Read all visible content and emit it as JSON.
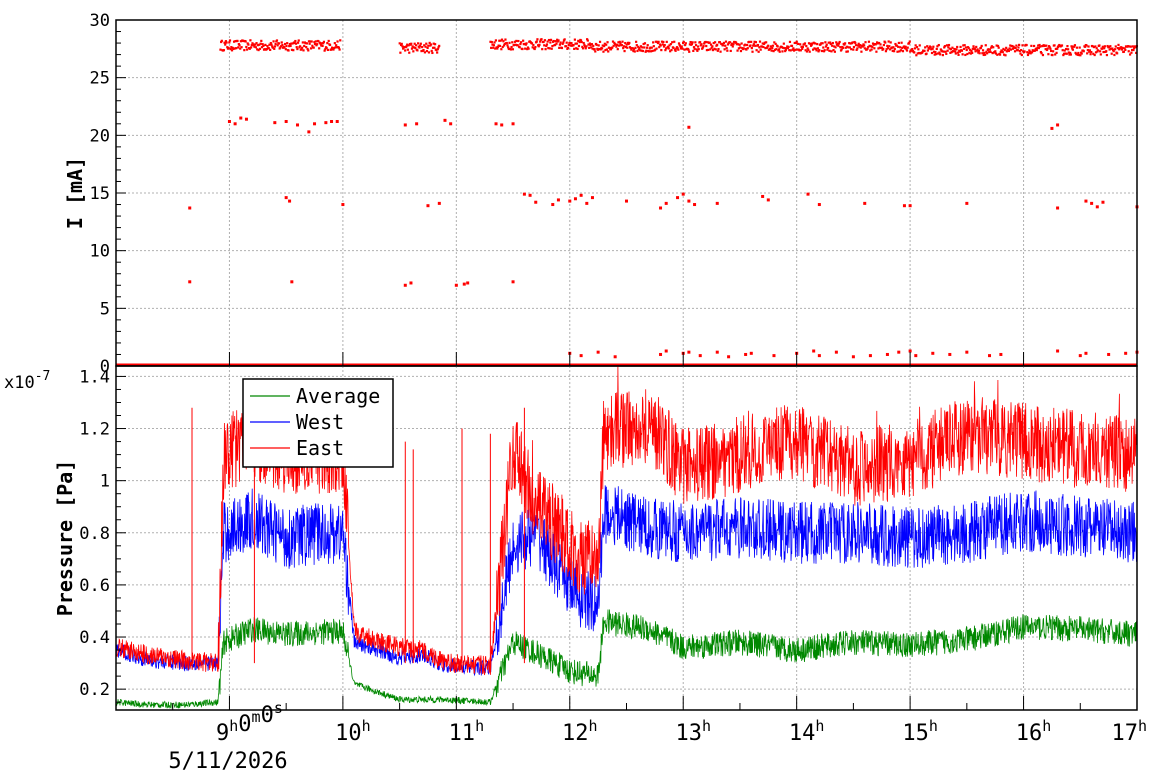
{
  "chart_data": [
    {
      "type": "scatter",
      "ylabel": "I [mA]",
      "ylim": [
        0,
        30
      ],
      "yticks": [
        "0",
        "5",
        "10",
        "15",
        "20",
        "25",
        "30"
      ],
      "grid": true,
      "color": "#ff0000",
      "series": [
        {
          "points": [
            [
              8.65,
              13.7
            ],
            [
              8.65,
              7.3
            ],
            [
              9.55,
              7.3
            ],
            [
              9.5,
              14.6
            ],
            [
              9.53,
              14.3
            ],
            [
              9.0,
              21.2
            ],
            [
              9.05,
              21.0
            ],
            [
              9.1,
              21.5
            ],
            [
              9.15,
              21.4
            ],
            [
              9.4,
              21.1
            ],
            [
              9.5,
              21.2
            ],
            [
              9.6,
              20.9
            ],
            [
              9.7,
              20.3
            ],
            [
              9.75,
              21.0
            ],
            [
              9.85,
              21.1
            ],
            [
              9.9,
              21.2
            ],
            [
              9.95,
              21.2
            ],
            [
              10.0,
              14.0
            ],
            [
              10.55,
              7.0
            ],
            [
              10.6,
              7.2
            ],
            [
              10.55,
              20.9
            ],
            [
              10.65,
              21.0
            ],
            [
              10.75,
              13.9
            ],
            [
              10.85,
              14.1
            ],
            [
              10.9,
              21.3
            ],
            [
              10.95,
              21.0
            ],
            [
              11.0,
              7.0
            ],
            [
              11.07,
              7.1
            ],
            [
              11.1,
              7.2
            ],
            [
              11.35,
              21.0
            ],
            [
              11.4,
              20.9
            ],
            [
              11.5,
              21.0
            ],
            [
              11.5,
              7.3
            ],
            [
              11.6,
              14.9
            ],
            [
              11.65,
              14.8
            ],
            [
              11.7,
              14.2
            ],
            [
              11.85,
              14.0
            ],
            [
              11.9,
              14.4
            ],
            [
              12.0,
              14.3
            ],
            [
              12.05,
              14.5
            ],
            [
              12.1,
              14.8
            ],
            [
              12.15,
              14.1
            ],
            [
              12.2,
              14.6
            ],
            [
              12.5,
              14.3
            ],
            [
              12.8,
              13.7
            ],
            [
              12.85,
              14.1
            ],
            [
              12.95,
              14.6
            ],
            [
              13.0,
              14.9
            ],
            [
              13.05,
              14.3
            ],
            [
              13.1,
              14.0
            ],
            [
              13.3,
              14.1
            ],
            [
              13.7,
              14.7
            ],
            [
              13.75,
              14.4
            ],
            [
              14.1,
              14.9
            ],
            [
              14.2,
              14.0
            ],
            [
              14.6,
              14.1
            ],
            [
              14.95,
              13.9
            ],
            [
              15.0,
              13.9
            ],
            [
              15.5,
              14.1
            ],
            [
              16.3,
              13.7
            ],
            [
              16.55,
              14.3
            ],
            [
              16.6,
              14.1
            ],
            [
              16.65,
              13.8
            ],
            [
              16.7,
              14.2
            ],
            [
              17.0,
              13.8
            ],
            [
              13.05,
              20.7
            ],
            [
              16.25,
              20.6
            ],
            [
              16.3,
              20.9
            ],
            [
              12.0,
              1.1
            ],
            [
              12.1,
              0.9
            ],
            [
              12.25,
              1.2
            ],
            [
              12.4,
              0.8
            ],
            [
              12.8,
              1.0
            ],
            [
              12.85,
              1.3
            ],
            [
              13.0,
              1.1
            ],
            [
              13.05,
              1.2
            ],
            [
              13.15,
              0.9
            ],
            [
              13.3,
              1.2
            ],
            [
              13.4,
              0.8
            ],
            [
              13.55,
              1.0
            ],
            [
              13.6,
              1.1
            ],
            [
              13.8,
              0.9
            ],
            [
              14.0,
              1.1
            ],
            [
              14.15,
              1.3
            ],
            [
              14.2,
              0.9
            ],
            [
              14.35,
              1.2
            ],
            [
              14.5,
              0.8
            ],
            [
              14.65,
              0.9
            ],
            [
              14.8,
              1.0
            ],
            [
              14.9,
              1.2
            ],
            [
              15.0,
              1.3
            ],
            [
              15.05,
              0.9
            ],
            [
              15.2,
              1.1
            ],
            [
              15.35,
              1.0
            ],
            [
              15.5,
              1.2
            ],
            [
              15.7,
              0.9
            ],
            [
              15.8,
              1.0
            ],
            [
              16.3,
              1.3
            ],
            [
              16.5,
              0.9
            ],
            [
              16.55,
              1.1
            ],
            [
              16.75,
              1.0
            ],
            [
              16.9,
              1.1
            ],
            [
              17.0,
              1.2
            ]
          ]
        }
      ]
    },
    {
      "type": "line",
      "ylabel": "Pressure [Pa]",
      "yexponent": "x10",
      "yexponent_power": "-7",
      "ylim": [
        0.12,
        1.44
      ],
      "yticks": [
        "0.2",
        "0.4",
        "0.6",
        "0.8",
        "1",
        "1.2",
        "1.4"
      ],
      "xlim": [
        8.0,
        17.0
      ],
      "xticks": [
        {
          "x": 9,
          "base": "9",
          "sup": "h",
          "rest": "0",
          "sup2": "m",
          "rest2": "0",
          "sup3": "s"
        },
        {
          "x": 10,
          "base": "10",
          "sup": "h"
        },
        {
          "x": 11,
          "base": "11",
          "sup": "h"
        },
        {
          "x": 12,
          "base": "12",
          "sup": "h"
        },
        {
          "x": 13,
          "base": "13",
          "sup": "h"
        },
        {
          "x": 14,
          "base": "14",
          "sup": "h"
        },
        {
          "x": 15,
          "base": "15",
          "sup": "h"
        },
        {
          "x": 16,
          "base": "16",
          "sup": "h"
        },
        {
          "x": 17,
          "base": "17",
          "sup": "h"
        }
      ],
      "date_label": "5/11/2026",
      "grid": true,
      "legend": {
        "placement": "top-left",
        "entries": [
          {
            "name": "Average",
            "color": "#008800"
          },
          {
            "name": "West",
            "color": "#0000ff"
          },
          {
            "name": "East",
            "color": "#ff0000"
          }
        ]
      },
      "series": [
        {
          "name": "Average",
          "color": "#008800",
          "x": [
            8.0,
            8.3,
            8.6,
            8.9,
            8.95,
            9.2,
            9.5,
            9.8,
            10.0,
            10.1,
            10.5,
            10.7,
            10.9,
            11.3,
            11.5,
            11.7,
            12.0,
            12.25,
            12.3,
            12.7,
            13.0,
            13.5,
            14.0,
            14.5,
            15.0,
            15.5,
            16.0,
            16.5,
            17.0
          ],
          "values": [
            0.15,
            0.14,
            0.14,
            0.15,
            0.38,
            0.43,
            0.41,
            0.42,
            0.42,
            0.22,
            0.16,
            0.16,
            0.16,
            0.15,
            0.38,
            0.34,
            0.27,
            0.25,
            0.46,
            0.43,
            0.36,
            0.38,
            0.35,
            0.38,
            0.37,
            0.39,
            0.44,
            0.43,
            0.41
          ],
          "amplitude": 0.05
        },
        {
          "name": "West",
          "color": "#0000ff",
          "x": [
            8.0,
            8.3,
            8.6,
            8.9,
            8.95,
            9.2,
            9.5,
            9.8,
            10.0,
            10.1,
            10.5,
            10.7,
            10.9,
            11.3,
            11.5,
            11.7,
            11.9,
            12.1,
            12.25,
            12.3,
            12.7,
            13.0,
            13.5,
            14.0,
            14.5,
            15.0,
            15.5,
            16.0,
            16.5,
            17.0
          ],
          "values": [
            0.35,
            0.31,
            0.3,
            0.3,
            0.8,
            0.85,
            0.78,
            0.8,
            0.8,
            0.38,
            0.32,
            0.33,
            0.29,
            0.28,
            0.75,
            0.8,
            0.65,
            0.55,
            0.52,
            0.88,
            0.82,
            0.8,
            0.82,
            0.8,
            0.8,
            0.78,
            0.8,
            0.85,
            0.82,
            0.8
          ],
          "amplitude": 0.12
        },
        {
          "name": "East",
          "color": "#ff0000",
          "x": [
            8.0,
            8.3,
            8.6,
            8.9,
            8.95,
            9.2,
            9.5,
            9.8,
            10.0,
            10.1,
            10.5,
            10.7,
            10.9,
            11.3,
            11.5,
            11.7,
            11.9,
            12.1,
            12.25,
            12.3,
            12.7,
            13.0,
            13.5,
            14.0,
            14.5,
            15.0,
            15.5,
            16.0,
            16.5,
            17.0
          ],
          "values": [
            0.36,
            0.33,
            0.31,
            0.3,
            1.1,
            1.15,
            1.1,
            1.1,
            1.1,
            0.42,
            0.36,
            0.35,
            0.3,
            0.29,
            1.12,
            0.9,
            0.82,
            0.7,
            0.7,
            1.18,
            1.22,
            1.05,
            1.1,
            1.15,
            1.05,
            1.08,
            1.18,
            1.15,
            1.12,
            1.1
          ],
          "amplitude": 0.15
        }
      ]
    }
  ]
}
